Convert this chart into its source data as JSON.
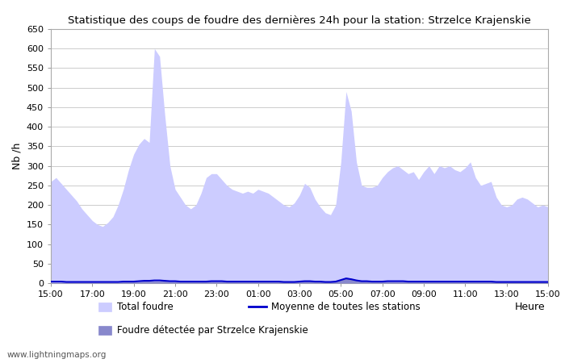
{
  "title": "Statistique des coups de foudre des dernières 24h pour la station: Strzelce Krajenskie",
  "xlabel": "Heure",
  "ylabel": "Nb /h",
  "ylim": [
    0,
    650
  ],
  "yticks": [
    0,
    50,
    100,
    150,
    200,
    250,
    300,
    350,
    400,
    450,
    500,
    550,
    600,
    650
  ],
  "xtick_labels": [
    "15:00",
    "17:00",
    "19:00",
    "21:00",
    "23:00",
    "01:00",
    "03:00",
    "05:00",
    "07:00",
    "09:00",
    "11:00",
    "13:00",
    "15:00"
  ],
  "watermark": "www.lightningmaps.org",
  "legend_total": "Total foudre",
  "legend_station": "Foudre détectée par Strzelce Krajenskie",
  "legend_avg": "Moyenne de toutes les stations",
  "color_total": "#ccccff",
  "color_station": "#8888cc",
  "color_avg": "#0000cc",
  "background_color": "#ffffff",
  "grid_color": "#cccccc",
  "time_hours": [
    15.0,
    15.25,
    15.5,
    15.75,
    16.0,
    16.25,
    16.5,
    16.75,
    17.0,
    17.25,
    17.5,
    17.75,
    18.0,
    18.25,
    18.5,
    18.75,
    19.0,
    19.25,
    19.5,
    19.75,
    20.0,
    20.25,
    20.5,
    20.75,
    21.0,
    21.25,
    21.5,
    21.75,
    22.0,
    22.25,
    22.5,
    22.75,
    23.0,
    23.25,
    23.5,
    23.75,
    24.0,
    24.25,
    24.5,
    24.75,
    25.0,
    25.25,
    25.5,
    25.75,
    26.0,
    26.25,
    26.5,
    26.75,
    27.0,
    27.25,
    27.5,
    27.75,
    28.0,
    28.25,
    28.5,
    28.75,
    29.0,
    29.25,
    29.5,
    29.75,
    30.0,
    30.25,
    30.5,
    30.75,
    31.0,
    31.25,
    31.5,
    31.75,
    32.0,
    32.25,
    32.5,
    32.75,
    33.0,
    33.25,
    33.5,
    33.75,
    34.0,
    34.25,
    34.5,
    34.75,
    35.0,
    35.25,
    35.5,
    35.75,
    36.0,
    36.25,
    36.5,
    36.75,
    37.0,
    37.25,
    37.5,
    37.75,
    38.0,
    38.25,
    38.5,
    38.75,
    39.0
  ],
  "total_foudre": [
    260,
    270,
    255,
    240,
    225,
    210,
    190,
    175,
    160,
    150,
    145,
    155,
    170,
    200,
    240,
    290,
    330,
    355,
    370,
    360,
    600,
    580,
    430,
    300,
    240,
    220,
    200,
    190,
    200,
    230,
    270,
    280,
    280,
    265,
    250,
    240,
    235,
    230,
    235,
    230,
    240,
    235,
    230,
    220,
    210,
    200,
    195,
    205,
    225,
    255,
    245,
    215,
    195,
    180,
    175,
    200,
    310,
    490,
    440,
    310,
    250,
    245,
    245,
    250,
    270,
    285,
    295,
    300,
    290,
    280,
    285,
    265,
    285,
    300,
    280,
    300,
    295,
    300,
    290,
    285,
    295,
    310,
    270,
    250,
    255,
    260,
    220,
    200,
    195,
    200,
    215,
    220,
    215,
    205,
    195,
    200,
    195
  ],
  "station_foudre": [
    2,
    2,
    2,
    2,
    2,
    2,
    2,
    2,
    2,
    2,
    2,
    2,
    2,
    2,
    3,
    3,
    3,
    4,
    5,
    5,
    5,
    5,
    5,
    4,
    4,
    3,
    3,
    3,
    3,
    3,
    4,
    4,
    4,
    4,
    4,
    4,
    3,
    3,
    3,
    3,
    3,
    3,
    3,
    3,
    3,
    3,
    3,
    3,
    4,
    5,
    5,
    4,
    4,
    3,
    3,
    4,
    10,
    15,
    12,
    8,
    6,
    5,
    4,
    4,
    4,
    4,
    4,
    4,
    4,
    4,
    4,
    4,
    4,
    4,
    4,
    4,
    4,
    4,
    4,
    4,
    4,
    4,
    4,
    4,
    4,
    4,
    4,
    3,
    3,
    3,
    3,
    3,
    3,
    3,
    3,
    3,
    3
  ],
  "avg_foudre": [
    4,
    4,
    4,
    3,
    3,
    3,
    3,
    3,
    3,
    3,
    3,
    3,
    3,
    3,
    4,
    4,
    4,
    5,
    6,
    6,
    7,
    7,
    6,
    5,
    5,
    4,
    4,
    4,
    4,
    4,
    4,
    5,
    5,
    5,
    4,
    4,
    4,
    4,
    4,
    4,
    4,
    4,
    4,
    4,
    4,
    3,
    3,
    3,
    4,
    5,
    5,
    4,
    4,
    3,
    3,
    4,
    8,
    12,
    10,
    7,
    5,
    5,
    4,
    4,
    4,
    5,
    5,
    5,
    5,
    4,
    4,
    4,
    4,
    4,
    4,
    4,
    4,
    4,
    4,
    4,
    4,
    4,
    4,
    4,
    4,
    4,
    3,
    3,
    3,
    3,
    3,
    3,
    3,
    3,
    3,
    3,
    3
  ]
}
